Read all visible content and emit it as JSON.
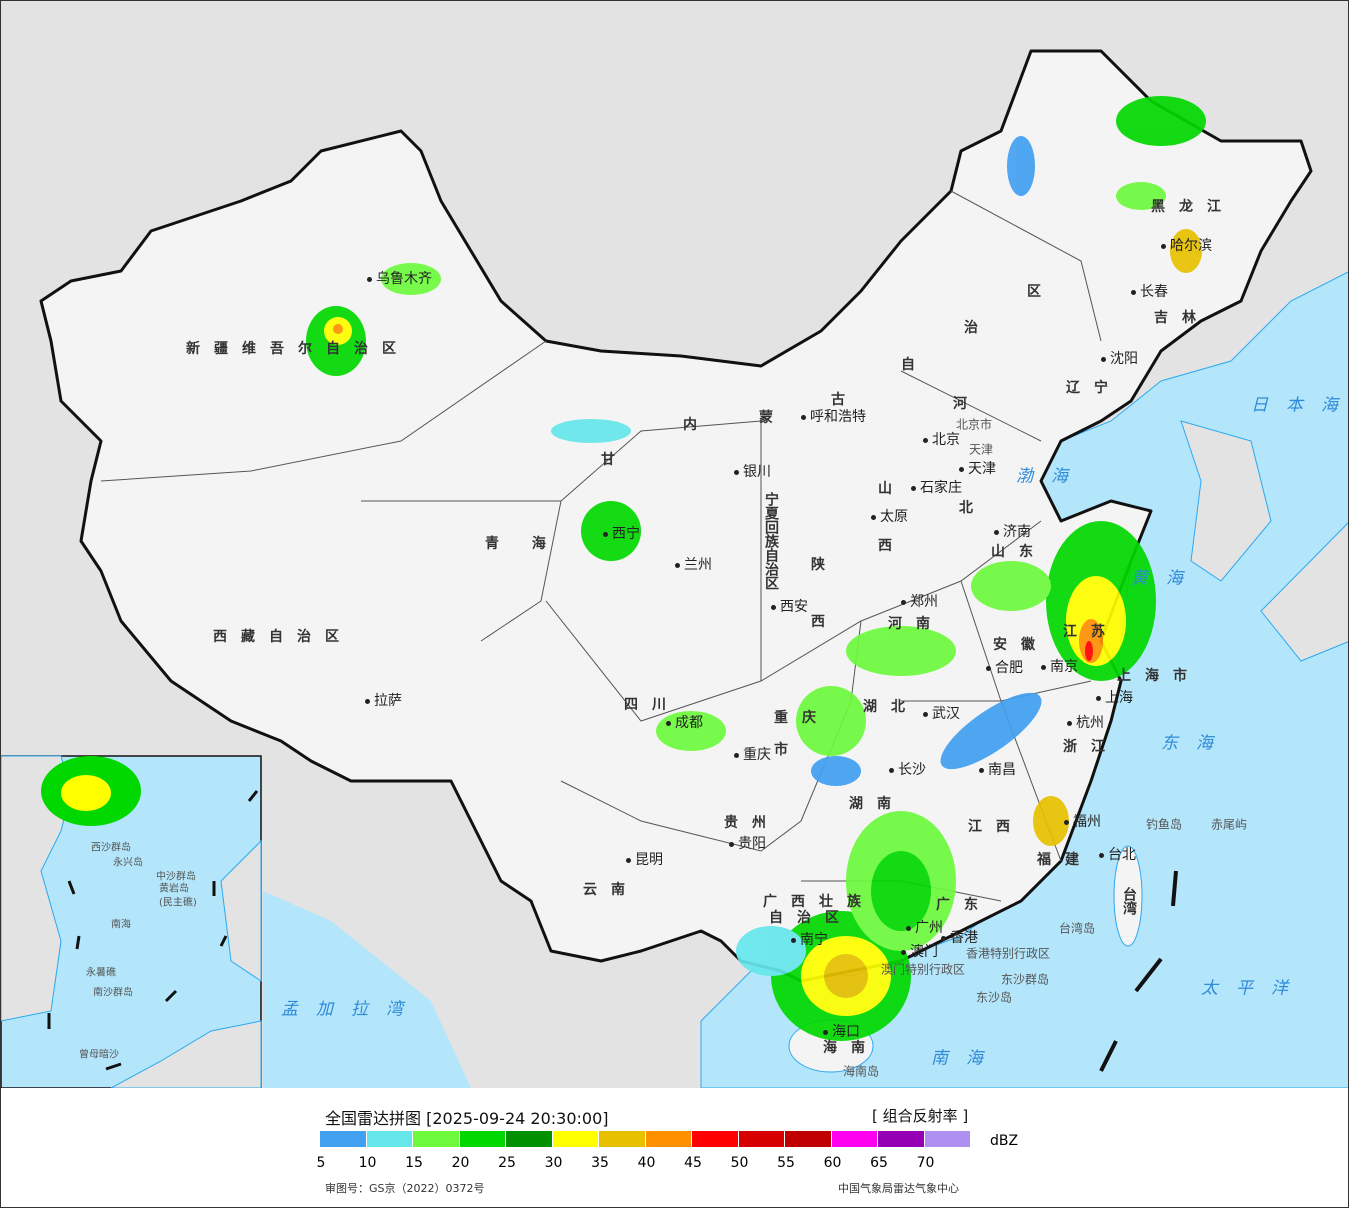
{
  "map": {
    "provinces": [
      "新疆维吾尔自治区",
      "西藏自治区",
      "青 海",
      "甘",
      "内",
      "蒙",
      "古",
      "自",
      "治",
      "区",
      "黑龙江",
      "吉林",
      "辽宁",
      "河",
      "北",
      "山",
      "西",
      "山东",
      "河南",
      "江苏",
      "安徽",
      "上海市",
      "浙江",
      "湖北",
      "湖南",
      "江西",
      "福建",
      "广东",
      "广西壮族",
      "自治区",
      "贵州",
      "云南",
      "四川",
      "重庆",
      "市",
      "陕",
      "西",
      "宁夏回族自治区",
      "台湾",
      "海南"
    ],
    "cities": [
      "乌鲁木齐",
      "拉萨",
      "西宁",
      "兰州",
      "银川",
      "呼和浩特",
      "北京",
      "天津",
      "石家庄",
      "太原",
      "济南",
      "郑州",
      "西安",
      "成都",
      "重庆",
      "武汉",
      "合肥",
      "南京",
      "上海",
      "杭州",
      "长沙",
      "南昌",
      "福州",
      "贵阳",
      "昆明",
      "南宁",
      "广州",
      "香港",
      "澳门",
      "海口",
      "台北",
      "沈阳",
      "长春",
      "哈尔滨"
    ],
    "seas": [
      "日本海",
      "渤海",
      "黄海",
      "东海",
      "太平洋",
      "南海",
      "孟加拉湾"
    ],
    "islands": [
      "钓鱼岛",
      "赤尾屿",
      "台湾岛",
      "东沙群岛",
      "东沙岛",
      "海南岛",
      "香港特别行政区",
      "澳门特别行政区",
      "北京市",
      "天津"
    ],
    "inset": [
      "西沙群岛",
      "永兴岛",
      "中沙群岛",
      "黄岩岛",
      "(民主礁)",
      "南海",
      "永暑礁",
      "南沙群岛",
      "曾母暗沙"
    ]
  },
  "legend": {
    "title": "全国雷达拼图 [2025-09-24 20:30:00]",
    "product": "[ 组合反射率 ]",
    "unit": "dBZ",
    "colors": [
      "#42a0f0",
      "#64e6eb",
      "#6dfa3d",
      "#00d800",
      "#019000",
      "#ffff00",
      "#e7c000",
      "#ff9000",
      "#ff0000",
      "#d60000",
      "#c00000",
      "#ff00f0",
      "#9600b4",
      "#ad90f0"
    ],
    "ticks": [
      "5",
      "10",
      "15",
      "20",
      "25",
      "30",
      "35",
      "40",
      "45",
      "50",
      "55",
      "60",
      "65",
      "70"
    ],
    "approval": "审图号：GS京（2022）0372号",
    "source": "中国气象局雷达气象中心"
  }
}
